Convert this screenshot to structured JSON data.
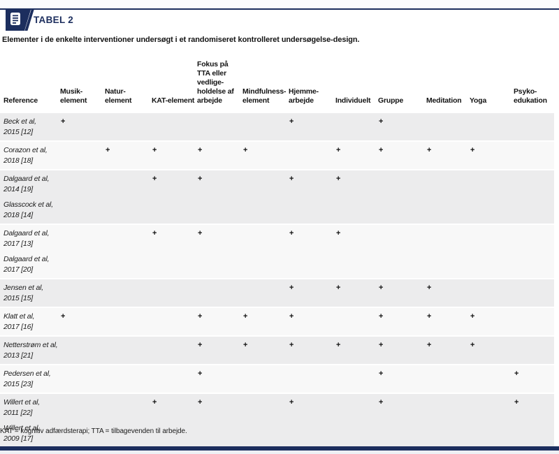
{
  "page": {
    "tag_label": "TABEL 2",
    "subtitle": "Elementer i de enkelte interventioner undersøgt i et randomiseret kontrolleret undersøgelse-design.",
    "footnote": "KAT = kognitiv adfærdsterapi; TTA = tilbagevenden til arbejde."
  },
  "icons": {
    "badge_icon": "document-icon"
  },
  "colors": {
    "navy": "#1c2e5e",
    "row_alt_gray": "#ececed",
    "row_light": "#f8f8f8",
    "text": "#141414"
  },
  "table": {
    "columns": [
      {
        "id": "reference",
        "lines": [
          "Reference"
        ]
      },
      {
        "id": "musik",
        "lines": [
          "Musik-",
          "element"
        ]
      },
      {
        "id": "natur",
        "lines": [
          "Natur-",
          "element"
        ]
      },
      {
        "id": "kat",
        "lines": [
          "KAT-element"
        ]
      },
      {
        "id": "fokus",
        "lines": [
          "Fokus på",
          "TTA eller",
          "vedlige-",
          "holdelse af",
          "arbejde"
        ]
      },
      {
        "id": "mindfulness",
        "lines": [
          "Mindfulness-",
          "element"
        ]
      },
      {
        "id": "hjemme",
        "lines": [
          "Hjemme-",
          "arbejde"
        ]
      },
      {
        "id": "individuelt",
        "lines": [
          "Individuelt"
        ]
      },
      {
        "id": "gruppe",
        "lines": [
          "Gruppe"
        ]
      },
      {
        "id": "meditation",
        "lines": [
          "Meditation"
        ]
      },
      {
        "id": "yoga",
        "lines": [
          "Yoga"
        ]
      },
      {
        "id": "psyko",
        "lines": [
          "Psyko-",
          "edukation"
        ]
      }
    ],
    "rows": [
      {
        "references": [
          {
            "name": "Beck et al,",
            "year": "2015 [12]"
          }
        ],
        "marks": [
          "+",
          "",
          "",
          "",
          "",
          "+",
          "",
          "+",
          "",
          "",
          ""
        ]
      },
      {
        "references": [
          {
            "name": "Corazon et al,",
            "year": "2018 [18]"
          }
        ],
        "marks": [
          "",
          "+",
          "+",
          "+",
          "+",
          "",
          "+",
          "+",
          "+",
          "+",
          ""
        ]
      },
      {
        "references": [
          {
            "name": "Dalgaard et al,",
            "year": "2014 [19]"
          },
          {
            "name": "Glasscock et al,",
            "year": "2018 [14]"
          }
        ],
        "marks": [
          "",
          "",
          "+",
          "+",
          "",
          "+",
          "+",
          "",
          "",
          "",
          ""
        ]
      },
      {
        "references": [
          {
            "name": "Dalgaard et al,",
            "year": "2017 [13]"
          },
          {
            "name": "Dalgaard et al,",
            "year": "2017 [20]"
          }
        ],
        "marks": [
          "",
          "",
          "+",
          "+",
          "",
          "+",
          "+",
          "",
          "",
          "",
          ""
        ]
      },
      {
        "references": [
          {
            "name": "Jensen et al,",
            "year": "2015 [15]"
          }
        ],
        "marks": [
          "",
          "",
          "",
          "",
          "",
          "+",
          "+",
          "+",
          "+",
          "",
          ""
        ]
      },
      {
        "references": [
          {
            "name": "Klatt et al,",
            "year": "2017 [16]"
          }
        ],
        "marks": [
          "+",
          "",
          "",
          "+",
          "+",
          "+",
          "",
          "+",
          "+",
          "+",
          ""
        ]
      },
      {
        "references": [
          {
            "name": "Netterstrøm et al,",
            "year": "2013 [21]"
          }
        ],
        "marks": [
          "",
          "",
          "",
          "+",
          "+",
          "+",
          "+",
          "+",
          "+",
          "+",
          ""
        ]
      },
      {
        "references": [
          {
            "name": "Pedersen et al,",
            "year": "2015 [23]"
          }
        ],
        "marks": [
          "",
          "",
          "",
          "+",
          "",
          "",
          "",
          "+",
          "",
          "",
          "+"
        ]
      },
      {
        "references": [
          {
            "name": "Willert et al,",
            "year": "2011 [22]"
          },
          {
            "name": "Willert et al,",
            "year": "2009 [17]"
          }
        ],
        "marks": [
          "",
          "",
          "+",
          "+",
          "",
          "+",
          "",
          "+",
          "",
          "",
          "+"
        ]
      }
    ]
  }
}
